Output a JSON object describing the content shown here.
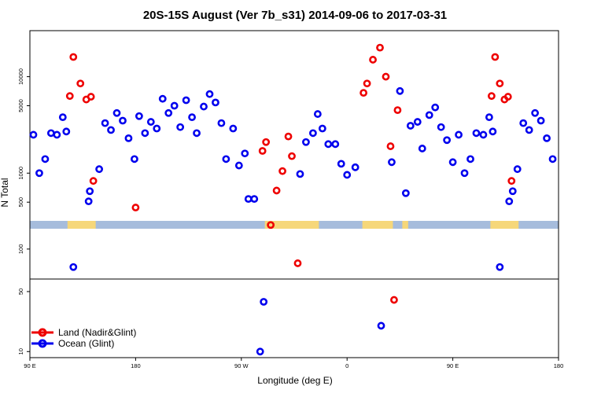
{
  "chart_data": {
    "type": "scatter",
    "title": "20S-15S August (Ver 7b_s31)   2014-09-06 to 2017-03-31",
    "xlabel": "Longitude (deg E)",
    "ylabel": "N Total",
    "x_ticks": [
      {
        "value": 90,
        "label": "90 E"
      },
      {
        "value": 180,
        "label": "180"
      },
      {
        "value": 270,
        "label": "90 W"
      },
      {
        "value": 360,
        "label": "0"
      },
      {
        "value": 450,
        "label": "90 E"
      },
      {
        "value": 540,
        "label": "180"
      }
    ],
    "xlim": [
      90,
      540
    ],
    "upper_panel": {
      "scale": "log",
      "ylim": [
        320,
        30000
      ],
      "y_ticks": [
        {
          "value": 500,
          "label": "500"
        },
        {
          "value": 1000,
          "label": "1000"
        },
        {
          "value": 5000,
          "label": "5000"
        },
        {
          "value": 10000,
          "label": "10000"
        }
      ]
    },
    "middle_panel": {
      "scale": "log",
      "ylim": [
        50,
        160
      ],
      "y_ticks": [
        {
          "value": 50,
          "label": "50"
        },
        {
          "value": 100,
          "label": "100"
        }
      ]
    },
    "lower_panel": {
      "scale": "log",
      "ylim": [
        8.5,
        70
      ],
      "y_ticks": [
        {
          "value": 10,
          "label": "10"
        },
        {
          "value": 50,
          "label": "50"
        }
      ]
    },
    "land_spans": [
      [
        122,
        146
      ],
      [
        290,
        336
      ],
      [
        373,
        399
      ],
      [
        407,
        412
      ],
      [
        482,
        506
      ]
    ],
    "series": [
      {
        "name": "Land (Nadir&Glint)",
        "color": "#ee0000",
        "points": [
          [
            124,
            6300
          ],
          [
            127,
            16000
          ],
          [
            133,
            8500
          ],
          [
            138,
            5800
          ],
          [
            142,
            6200
          ],
          [
            144,
            830
          ],
          [
            180,
            440
          ],
          [
            288,
            1700
          ],
          [
            291,
            2100
          ],
          [
            295,
            290
          ],
          [
            300,
            660
          ],
          [
            305,
            1050
          ],
          [
            310,
            2400
          ],
          [
            313,
            1500
          ],
          [
            318,
            72
          ],
          [
            374,
            6800
          ],
          [
            377,
            8500
          ],
          [
            382,
            15000
          ],
          [
            388,
            20000
          ],
          [
            393,
            10000
          ],
          [
            397,
            1900
          ],
          [
            400,
            40
          ],
          [
            403,
            4500
          ],
          [
            483,
            6300
          ],
          [
            486,
            16000
          ],
          [
            490,
            8500
          ],
          [
            494,
            5800
          ],
          [
            497,
            6200
          ],
          [
            500,
            830
          ]
        ]
      },
      {
        "name": "Ocean (Glint)",
        "color": "#0000ee",
        "points": [
          [
            93,
            2500
          ],
          [
            98,
            1000
          ],
          [
            103,
            1400
          ],
          [
            108,
            2600
          ],
          [
            113,
            2500
          ],
          [
            118,
            3800
          ],
          [
            121,
            2700
          ],
          [
            127,
            66
          ],
          [
            140,
            510
          ],
          [
            141,
            650
          ],
          [
            149,
            1100
          ],
          [
            154,
            3300
          ],
          [
            159,
            2800
          ],
          [
            164,
            4200
          ],
          [
            169,
            3500
          ],
          [
            174,
            2300
          ],
          [
            179,
            1400
          ],
          [
            183,
            3900
          ],
          [
            188,
            2600
          ],
          [
            193,
            3400
          ],
          [
            198,
            2900
          ],
          [
            203,
            5900
          ],
          [
            208,
            4200
          ],
          [
            213,
            5000
          ],
          [
            218,
            3000
          ],
          [
            223,
            5700
          ],
          [
            228,
            3800
          ],
          [
            232,
            2600
          ],
          [
            238,
            4900
          ],
          [
            243,
            6600
          ],
          [
            248,
            5400
          ],
          [
            253,
            3300
          ],
          [
            257,
            1400
          ],
          [
            263,
            2900
          ],
          [
            268,
            1200
          ],
          [
            273,
            1600
          ],
          [
            276,
            540
          ],
          [
            281,
            540
          ],
          [
            286,
            10
          ],
          [
            289,
            38
          ],
          [
            320,
            980
          ],
          [
            325,
            2100
          ],
          [
            331,
            2600
          ],
          [
            335,
            4100
          ],
          [
            339,
            2900
          ],
          [
            344,
            2000
          ],
          [
            350,
            2000
          ],
          [
            355,
            1250
          ],
          [
            360,
            960
          ],
          [
            367,
            1150
          ],
          [
            389,
            20
          ],
          [
            398,
            1300
          ],
          [
            405,
            7100
          ],
          [
            410,
            620
          ],
          [
            414,
            3100
          ],
          [
            420,
            3400
          ],
          [
            424,
            1800
          ],
          [
            430,
            4000
          ],
          [
            435,
            4800
          ],
          [
            440,
            3000
          ],
          [
            445,
            2200
          ],
          [
            450,
            1300
          ],
          [
            455,
            2500
          ],
          [
            460,
            1000
          ],
          [
            465,
            1400
          ],
          [
            470,
            2600
          ],
          [
            476,
            2500
          ],
          [
            481,
            3800
          ],
          [
            484,
            2700
          ],
          [
            490,
            66
          ],
          [
            498,
            510
          ],
          [
            501,
            650
          ],
          [
            505,
            1100
          ],
          [
            510,
            3300
          ],
          [
            515,
            2800
          ],
          [
            520,
            4200
          ],
          [
            525,
            3500
          ],
          [
            530,
            2300
          ],
          [
            535,
            1400
          ]
        ]
      }
    ],
    "legend_position": "bottom-left"
  }
}
